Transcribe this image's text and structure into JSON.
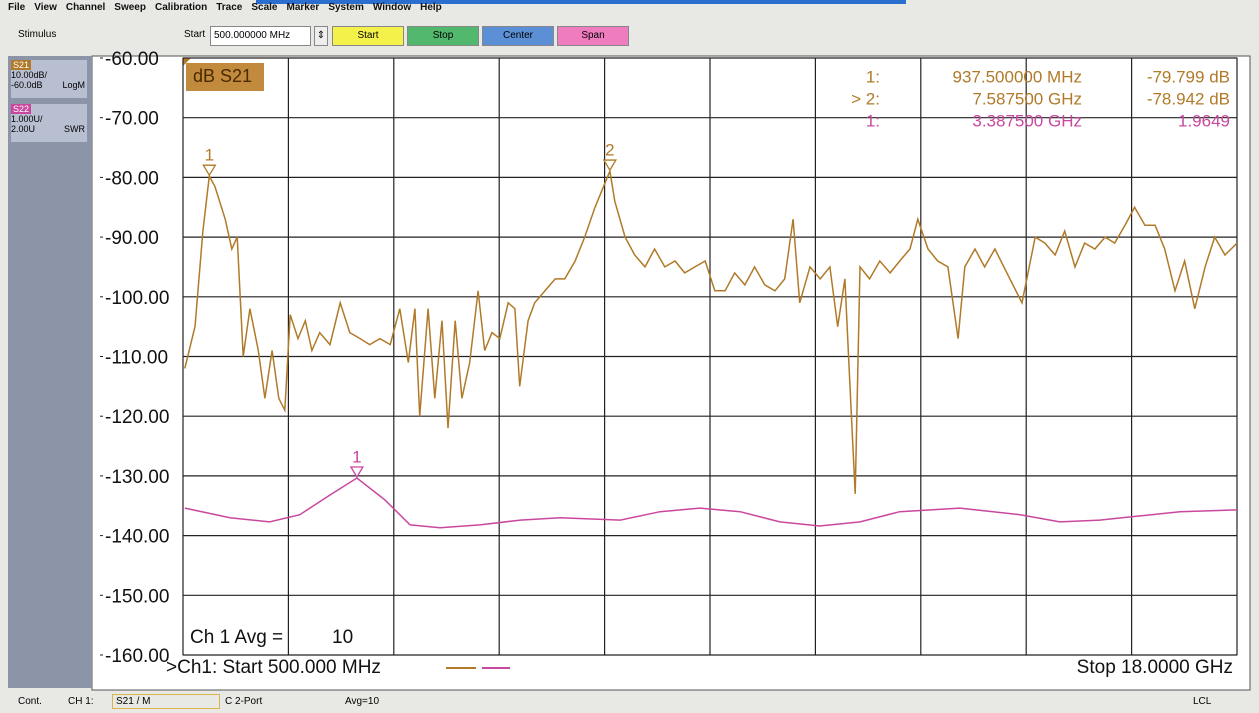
{
  "menu": [
    "File",
    "View",
    "Channel",
    "Sweep",
    "Calibration",
    "Trace",
    "Scale",
    "Marker",
    "System",
    "Window",
    "Help"
  ],
  "toolbar": {
    "group": "Stimulus",
    "field_label": "Start",
    "field_value": "500.000000 MHz",
    "buttons": [
      "Start",
      "Stop",
      "Center",
      "Span"
    ]
  },
  "chart_data": {
    "type": "line",
    "title": "dB S21",
    "grid": true,
    "xlim": [
      0.5,
      18
    ],
    "xticks": [
      0.5,
      2.25,
      4,
      5.75,
      7.5,
      9.25,
      11,
      12.75,
      14.5,
      16.25,
      18
    ],
    "ylim": [
      -160,
      -60
    ],
    "yticks": [
      {
        "value": -60,
        "label": "-60.00"
      },
      {
        "value": -70,
        "label": "-70.00"
      },
      {
        "value": -80,
        "label": "-80.00"
      },
      {
        "value": -90,
        "label": "-90.00"
      },
      {
        "value": -100,
        "label": "-100.00"
      },
      {
        "value": -110,
        "label": "-110.00"
      },
      {
        "value": -120,
        "label": "-120.00"
      },
      {
        "value": -130,
        "label": "-130.00"
      },
      {
        "value": -140,
        "label": "-140.00"
      },
      {
        "value": -150,
        "label": "-150.00"
      },
      {
        "value": -160,
        "label": "-160.00"
      }
    ],
    "y2lim": [
      -1,
      9
    ],
    "series": [
      {
        "name": "S21",
        "scale": "10.00dB/",
        "ref": "-60.0dB",
        "format": "LogM",
        "color": "#b07a28",
        "x": [
          0.53,
          0.7,
          0.83,
          0.9375,
          1.03,
          1.2,
          1.31,
          1.4,
          1.5,
          1.61,
          1.75,
          1.86,
          1.98,
          2.09,
          2.19,
          2.28,
          2.41,
          2.53,
          2.64,
          2.77,
          2.94,
          3.11,
          3.27,
          3.44,
          3.6,
          3.77,
          3.94,
          4.1,
          4.24,
          4.35,
          4.43,
          4.57,
          4.68,
          4.8,
          4.9,
          5.02,
          5.13,
          5.26,
          5.4,
          5.51,
          5.63,
          5.76,
          5.9,
          6.01,
          6.09,
          6.23,
          6.34,
          6.51,
          6.68,
          6.84,
          7.01,
          7.17,
          7.34,
          7.5875,
          7.67,
          7.84,
          8.0,
          8.17,
          8.33,
          8.5,
          8.67,
          8.83,
          9.0,
          9.17,
          9.33,
          9.5,
          9.66,
          9.83,
          9.99,
          10.16,
          10.33,
          10.49,
          10.63,
          10.74,
          10.91,
          11.08,
          11.24,
          11.37,
          11.49,
          11.57,
          11.66,
          11.74,
          11.9,
          12.07,
          12.24,
          12.4,
          12.57,
          12.7,
          12.87,
          13.03,
          13.2,
          13.37,
          13.48,
          13.65,
          13.81,
          13.98,
          14.23,
          14.43,
          14.65,
          14.81,
          14.98,
          15.14,
          15.31,
          15.47,
          15.64,
          15.81,
          15.97,
          16.14,
          16.3,
          16.47,
          16.64,
          16.8,
          16.97,
          17.13,
          17.3,
          17.47,
          17.63,
          17.8,
          18.0
        ],
        "values": [
          -112,
          -105,
          -89,
          -79.799,
          -81.5,
          -87,
          -92,
          -90,
          -110,
          -102,
          -109,
          -117,
          -109,
          -117,
          -119,
          -103,
          -107,
          -104,
          -109,
          -106,
          -108,
          -101,
          -106,
          -107,
          -108,
          -107,
          -108,
          -102,
          -111,
          -102,
          -120,
          -102,
          -117,
          -104,
          -122,
          -104,
          -117,
          -111,
          -99,
          -109,
          -106,
          -107,
          -101,
          -102,
          -115,
          -104,
          -101,
          -99,
          -97,
          -97,
          -94,
          -90,
          -85,
          -78.942,
          -84,
          -90,
          -93,
          -95,
          -92,
          -95,
          -94,
          -96,
          -95,
          -94,
          -99,
          -99,
          -96,
          -98,
          -95,
          -98,
          -99,
          -97,
          -87,
          -101,
          -95,
          -97,
          -95,
          -105,
          -97,
          -114,
          -133,
          -95,
          -97,
          -94,
          -96,
          -94,
          -92,
          -87,
          -92,
          -94,
          -95,
          -107,
          -95,
          -92,
          -95,
          -92,
          -97,
          -101,
          -90,
          -91,
          -93,
          -89,
          -95,
          -91,
          -92,
          -90,
          -91,
          -88,
          -85,
          -88,
          -88,
          -92,
          -99,
          -94,
          -102,
          -95,
          -90,
          -93,
          -91
        ],
        "markers": [
          {
            "label": "1",
            "x": 0.9375,
            "value": -79.799
          },
          {
            "label": "2",
            "x": 7.5875,
            "value": -78.942
          }
        ]
      },
      {
        "name": "S22",
        "scale": "1.000U/",
        "ref": "2.00U",
        "format": "SWR",
        "color": "#c9489e",
        "axis": "y2",
        "x": [
          0.53,
          1.28,
          1.94,
          2.44,
          2.94,
          3.3875,
          3.85,
          4.27,
          4.77,
          5.43,
          6.1,
          6.76,
          7.76,
          8.42,
          9.08,
          9.75,
          10.41,
          11.07,
          11.74,
          12.4,
          13.4,
          14.4,
          15.06,
          15.72,
          16.39,
          17.05,
          18.0
        ],
        "values": [
          1.46,
          1.3,
          1.23,
          1.35,
          1.68,
          1.9649,
          1.6,
          1.18,
          1.13,
          1.18,
          1.26,
          1.3,
          1.26,
          1.4,
          1.46,
          1.4,
          1.23,
          1.16,
          1.23,
          1.4,
          1.46,
          1.35,
          1.23,
          1.26,
          1.33,
          1.4,
          1.43
        ],
        "markers": [
          {
            "label": "1",
            "x": 3.3875,
            "value": 1.9649
          }
        ]
      }
    ],
    "readouts": [
      {
        "id": "1:",
        "stimulus": "937.500000 MHz",
        "response": "-79.799 dB",
        "color": "#b07a28"
      },
      {
        "id": "> 2:",
        "stimulus": "7.587500 GHz",
        "response": "-78.942 dB",
        "color": "#b07a28"
      },
      {
        "id": "1:",
        "stimulus": "3.387500 GHz",
        "response": "1.9649",
        "color": "#c9489e"
      }
    ],
    "averaging_label": "Ch 1 Avg =",
    "averaging_value": "10",
    "start_text": ">Ch1: Start 500.000 MHz",
    "stop_text": "Stop 18.0000 GHz"
  },
  "status_bar": [
    "Cont.",
    "CH 1:",
    "S21 / M",
    "C 2-Port",
    "Avg=10",
    "LCL"
  ]
}
